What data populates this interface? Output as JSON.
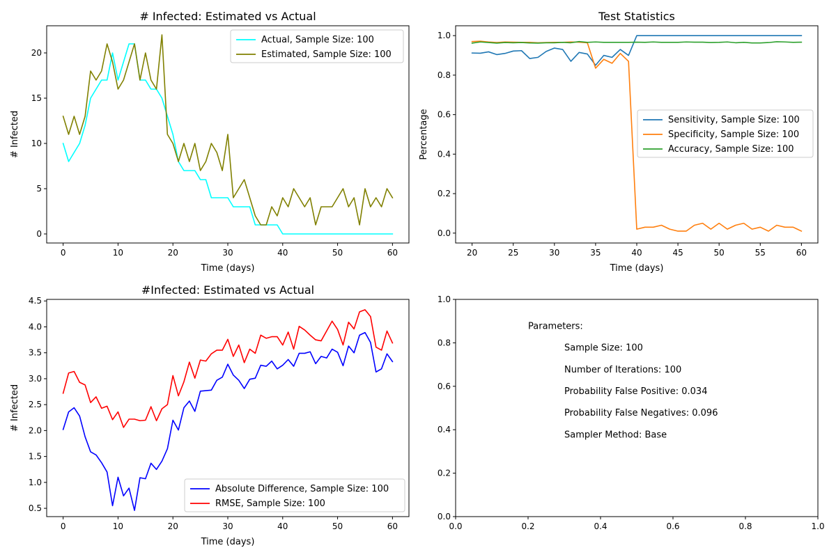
{
  "chart_data": [
    {
      "type": "line",
      "title": "# Infected: Estimated vs Actual",
      "xlabel": "Time (days)",
      "ylabel": "# Infected",
      "xlim": [
        -3,
        63
      ],
      "ylim": [
        -1,
        23
      ],
      "xticks": [
        0,
        10,
        20,
        30,
        40,
        50,
        60
      ],
      "yticks": [
        0,
        5,
        10,
        15,
        20
      ],
      "grid": false,
      "legend": "top-right",
      "series": [
        {
          "name": "Actual, Sample Size: 100",
          "color": "#00ffff",
          "x_start": 0,
          "values": [
            10,
            8,
            9,
            10,
            12,
            15,
            16,
            17,
            17,
            20,
            17,
            19,
            21,
            21,
            17,
            17,
            16,
            16,
            15,
            13,
            11,
            8,
            7,
            7,
            7,
            6,
            6,
            4,
            4,
            4,
            4,
            3,
            3,
            3,
            3,
            1,
            1,
            1,
            1,
            1,
            0,
            0,
            0,
            0,
            0,
            0,
            0,
            0,
            0,
            0,
            0,
            0,
            0,
            0,
            0,
            0,
            0,
            0,
            0,
            0,
            0
          ]
        },
        {
          "name": "Estimated, Sample Size: 100",
          "color": "#808000",
          "x_start": 0,
          "values": [
            13,
            11,
            13,
            11,
            13,
            18,
            17,
            18,
            21,
            19,
            16,
            17,
            19,
            21,
            17,
            20,
            17,
            16,
            22,
            11,
            10,
            8,
            10,
            8,
            10,
            7,
            8,
            10,
            9,
            7,
            11,
            4,
            5,
            6,
            4,
            2,
            1,
            1,
            3,
            2,
            4,
            3,
            5,
            4,
            3,
            4,
            1,
            3,
            3,
            3,
            4,
            5,
            3,
            4,
            1,
            5,
            3,
            4,
            3,
            5,
            4
          ]
        }
      ]
    },
    {
      "type": "line",
      "title": "Test Statistics",
      "xlabel": "Time (days)",
      "ylabel": "Percentage",
      "xlim": [
        18,
        62
      ],
      "ylim": [
        -0.05,
        1.05
      ],
      "xticks": [
        20,
        25,
        30,
        35,
        40,
        45,
        50,
        55,
        60
      ],
      "yticks": [
        0.0,
        0.2,
        0.4,
        0.6,
        0.8,
        1.0
      ],
      "ytick_labels": [
        "0.0",
        "0.2",
        "0.4",
        "0.6",
        "0.8",
        "1.0"
      ],
      "grid": false,
      "legend": "center-right",
      "series": [
        {
          "name": "Sensitivity, Sample Size: 100",
          "color": "#1f77b4",
          "x_start": 20,
          "values": [
            0.912,
            0.911,
            0.918,
            0.904,
            0.91,
            0.922,
            0.924,
            0.884,
            0.89,
            0.92,
            0.937,
            0.93,
            0.87,
            0.915,
            0.907,
            0.85,
            0.9,
            0.89,
            0.93,
            0.9,
            1.0,
            1.0,
            1.0,
            1.0,
            1.0,
            1.0,
            1.0,
            1.0,
            1.0,
            1.0,
            1.0,
            1.0,
            1.0,
            1.0,
            1.0,
            1.0,
            1.0,
            1.0,
            1.0,
            1.0,
            1.0
          ]
        },
        {
          "name": "Specificity, Sample Size: 100",
          "color": "#ff7f0e",
          "x_start": 20,
          "values": [
            0.97,
            0.972,
            0.968,
            0.965,
            0.968,
            0.967,
            0.966,
            0.966,
            0.964,
            0.965,
            0.966,
            0.966,
            0.968,
            0.967,
            0.964,
            0.835,
            0.88,
            0.86,
            0.91,
            0.87,
            0.02,
            0.03,
            0.03,
            0.04,
            0.02,
            0.01,
            0.01,
            0.04,
            0.05,
            0.02,
            0.05,
            0.02,
            0.04,
            0.05,
            0.02,
            0.03,
            0.01,
            0.04,
            0.03,
            0.03,
            0.01
          ]
        },
        {
          "name": "Accuracy, Sample Size: 100",
          "color": "#2ca02c",
          "x_start": 20,
          "values": [
            0.962,
            0.968,
            0.965,
            0.962,
            0.965,
            0.964,
            0.965,
            0.963,
            0.962,
            0.964,
            0.964,
            0.966,
            0.964,
            0.97,
            0.966,
            0.968,
            0.966,
            0.966,
            0.966,
            0.966,
            0.967,
            0.966,
            0.968,
            0.966,
            0.966,
            0.966,
            0.968,
            0.967,
            0.967,
            0.965,
            0.966,
            0.968,
            0.964,
            0.966,
            0.963,
            0.963,
            0.965,
            0.969,
            0.968,
            0.966,
            0.967
          ]
        }
      ]
    },
    {
      "type": "line",
      "title": "#Infected: Estimated vs Actual",
      "xlabel": "Time (days)",
      "ylabel": "# Infected",
      "xlim": [
        -3,
        63
      ],
      "ylim": [
        0.34,
        4.53
      ],
      "xticks": [
        0,
        10,
        20,
        30,
        40,
        50,
        60
      ],
      "yticks": [
        0.5,
        1.0,
        1.5,
        2.0,
        2.5,
        3.0,
        3.5,
        4.0,
        4.5
      ],
      "ytick_labels": [
        "0.5",
        "1.0",
        "1.5",
        "2.0",
        "2.5",
        "3.0",
        "3.5",
        "4.0",
        "4.5"
      ],
      "grid": false,
      "legend": "bottom-right",
      "series": [
        {
          "name": "Absolute Difference, Sample Size: 100",
          "color": "#0000ff",
          "x_start": 0,
          "values": [
            2.02,
            2.36,
            2.44,
            2.28,
            1.88,
            1.59,
            1.53,
            1.38,
            1.2,
            0.55,
            1.1,
            0.74,
            0.89,
            0.46,
            1.09,
            1.07,
            1.37,
            1.25,
            1.41,
            1.65,
            2.2,
            2.01,
            2.44,
            2.57,
            2.37,
            2.76,
            2.77,
            2.78,
            2.97,
            3.03,
            3.28,
            3.07,
            2.97,
            2.81,
            2.99,
            3.01,
            3.26,
            3.24,
            3.34,
            3.19,
            3.26,
            3.37,
            3.24,
            3.49,
            3.49,
            3.52,
            3.29,
            3.43,
            3.4,
            3.57,
            3.51,
            3.25,
            3.63,
            3.5,
            3.84,
            3.89,
            3.7,
            3.13,
            3.19,
            3.48,
            3.33
          ]
        },
        {
          "name": "RMSE, Sample Size: 100",
          "color": "#ff0000",
          "x_start": 0,
          "values": [
            2.72,
            3.11,
            3.14,
            2.93,
            2.88,
            2.54,
            2.65,
            2.43,
            2.47,
            2.21,
            2.36,
            2.06,
            2.22,
            2.22,
            2.19,
            2.2,
            2.46,
            2.19,
            2.42,
            2.5,
            3.06,
            2.67,
            2.94,
            3.32,
            3.01,
            3.36,
            3.34,
            3.48,
            3.55,
            3.55,
            3.76,
            3.43,
            3.65,
            3.31,
            3.57,
            3.49,
            3.84,
            3.78,
            3.81,
            3.81,
            3.65,
            3.9,
            3.57,
            4.01,
            3.94,
            3.84,
            3.75,
            3.73,
            3.92,
            4.11,
            3.95,
            3.65,
            4.09,
            3.96,
            4.29,
            4.33,
            4.2,
            3.61,
            3.55,
            3.92,
            3.69
          ]
        }
      ]
    },
    {
      "type": "text",
      "xlim": [
        0,
        1
      ],
      "ylim": [
        0,
        1
      ],
      "xticks": [
        0.0,
        0.2,
        0.4,
        0.6,
        0.8,
        1.0
      ],
      "yticks": [
        0.0,
        0.2,
        0.4,
        0.6,
        0.8,
        1.0
      ],
      "xtick_labels": [
        "0.0",
        "0.2",
        "0.4",
        "0.6",
        "0.8",
        "1.0"
      ],
      "ytick_labels": [
        "0.0",
        "0.2",
        "0.4",
        "0.6",
        "0.8",
        "1.0"
      ],
      "annotations": [
        {
          "text": "Parameters:",
          "x": 0.2,
          "y": 0.88
        },
        {
          "text": "Sample Size: 100",
          "x": 0.3,
          "y": 0.78
        },
        {
          "text": "Number of Iterations: 100",
          "x": 0.3,
          "y": 0.68
        },
        {
          "text": "Probability False Positive: 0.034",
          "x": 0.3,
          "y": 0.58
        },
        {
          "text": "Probability False Negatives: 0.096",
          "x": 0.3,
          "y": 0.48
        },
        {
          "text": "Sampler Method: Base",
          "x": 0.3,
          "y": 0.38
        }
      ]
    }
  ]
}
